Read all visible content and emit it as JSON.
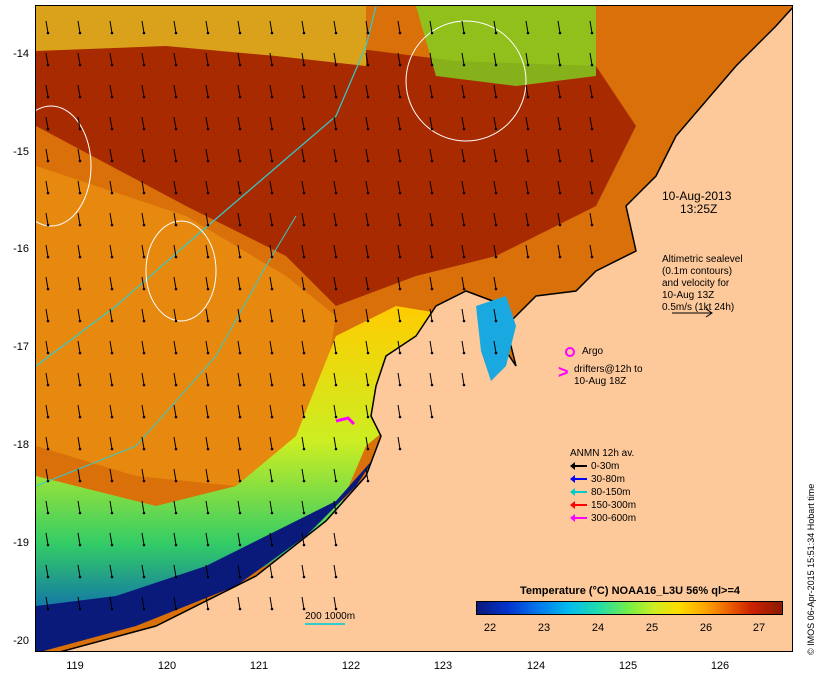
{
  "map": {
    "date_line1": "10-Aug-2013",
    "date_line2": "13:25Z",
    "sealevel_lines": [
      "Altimetric sealevel",
      "(0.1m contours)",
      "and velocity for",
      "10-Aug 13Z",
      "0.5m/s (1kt 24h)"
    ],
    "argo_label": "Argo",
    "drifters_lines": [
      "drifters@12h to",
      "10-Aug 18Z"
    ],
    "anmn_title": "ANMN 12h av.",
    "anmn_items": [
      {
        "label": "0-30m",
        "color": "#000000"
      },
      {
        "label": "30-80m",
        "color": "#0000ff"
      },
      {
        "label": "80-150m",
        "color": "#00cccc"
      },
      {
        "label": "150-300m",
        "color": "#ff0000"
      },
      {
        "label": "300-600m",
        "color": "#ff00ff"
      }
    ],
    "bathy_label": "200  1000m",
    "colorbar_title": "Temperature (°C) NOAA16_L3U 56% ql>=4",
    "colorbar_ticks": [
      "22",
      "23",
      "24",
      "25",
      "26",
      "27"
    ],
    "credit": "© IMOS 06-Apr-2015 15:51:34 Hobart time",
    "y_ticks": [
      "-14",
      "-15",
      "-16",
      "-17",
      "-18",
      "-19",
      "-20"
    ],
    "x_ticks": [
      "119",
      "120",
      "121",
      "122",
      "123",
      "124",
      "125",
      "126"
    ],
    "colors": {
      "land": "#fdc99b",
      "warm": "#a82a00",
      "coast": "#000000"
    }
  }
}
